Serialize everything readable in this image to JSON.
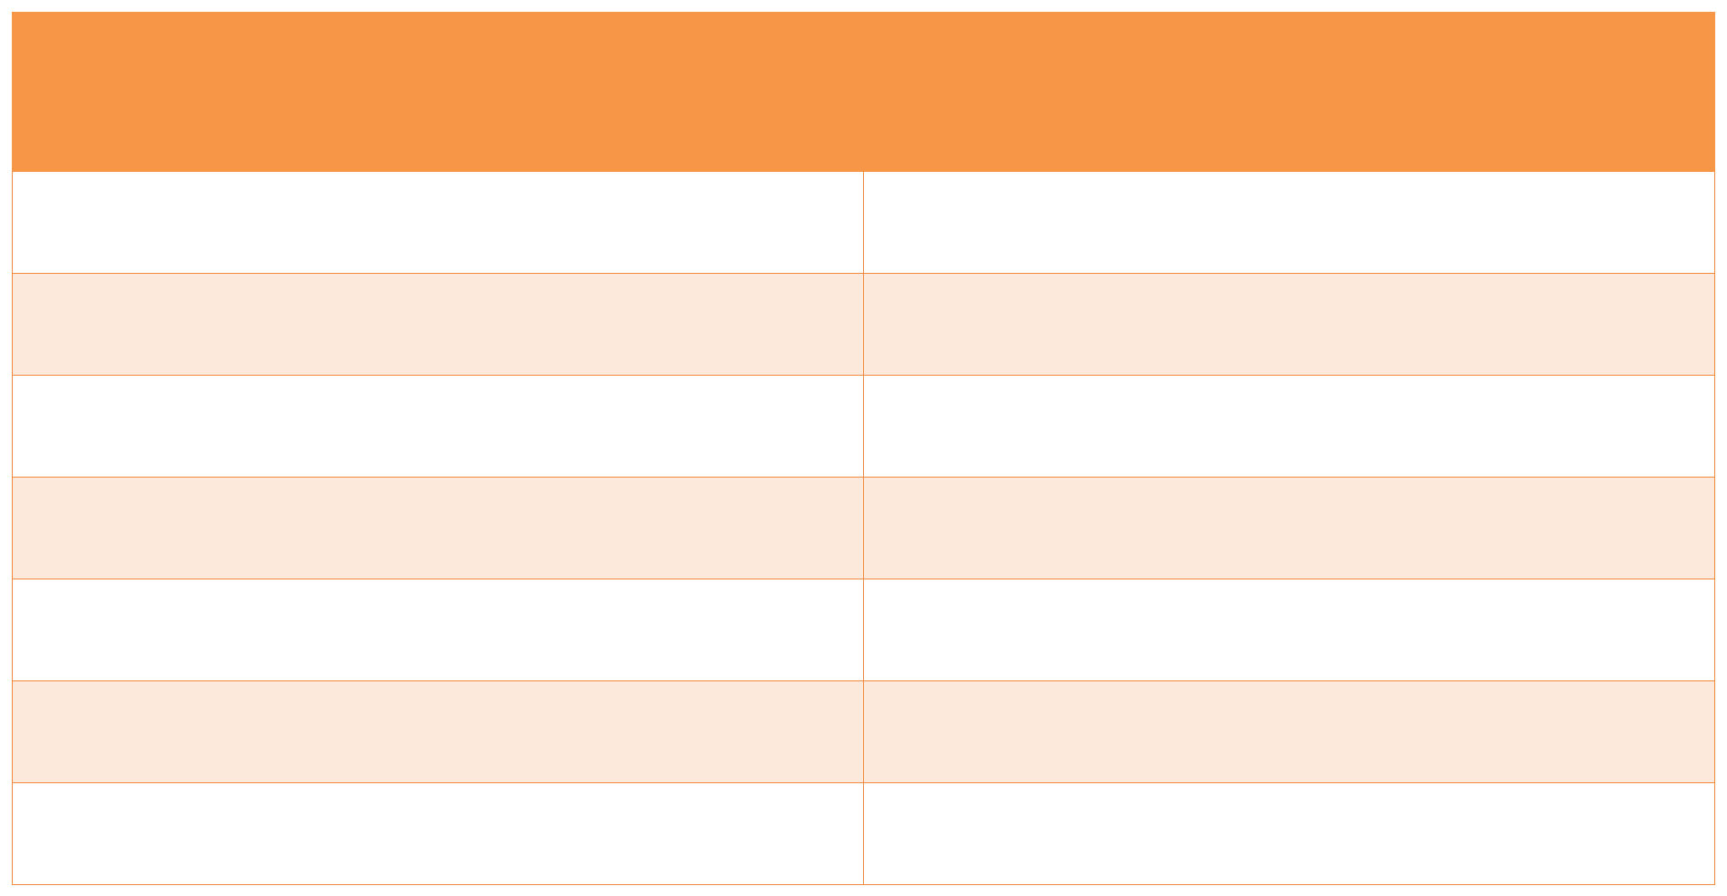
{
  "table": {
    "header": [
      "",
      ""
    ],
    "rows": [
      [
        "",
        ""
      ],
      [
        "",
        ""
      ],
      [
        "",
        ""
      ],
      [
        "",
        ""
      ],
      [
        "",
        ""
      ],
      [
        "",
        ""
      ],
      [
        "",
        ""
      ]
    ],
    "header_color": "#f79646",
    "band_color": "#fde9db",
    "border_color": "#f08a3c"
  }
}
